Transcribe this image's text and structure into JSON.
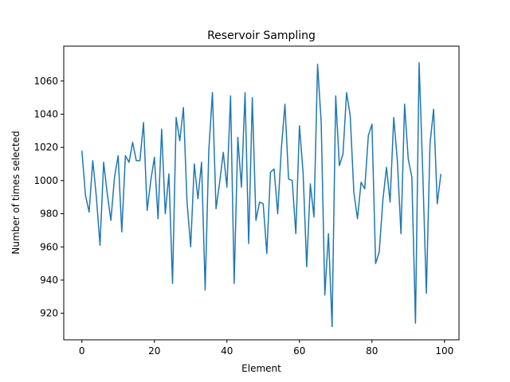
{
  "chart_data": {
    "type": "line",
    "title": "Reservoir Sampling",
    "xlabel": "Element",
    "ylabel": "Number of times selected",
    "xlim": [
      -5,
      104
    ],
    "ylim": [
      904,
      1081
    ],
    "x_ticks": [
      0,
      20,
      40,
      60,
      80,
      100
    ],
    "y_ticks": [
      920,
      940,
      960,
      980,
      1000,
      1020,
      1040,
      1060
    ],
    "grid": false,
    "series": [
      {
        "color": "#1f77b4",
        "x": [
          0,
          1,
          2,
          3,
          4,
          5,
          6,
          7,
          8,
          9,
          10,
          11,
          12,
          13,
          14,
          15,
          16,
          17,
          18,
          19,
          20,
          21,
          22,
          23,
          24,
          25,
          26,
          27,
          28,
          29,
          30,
          31,
          32,
          33,
          34,
          35,
          36,
          37,
          38,
          39,
          40,
          41,
          42,
          43,
          44,
          45,
          46,
          47,
          48,
          49,
          50,
          51,
          52,
          53,
          54,
          55,
          56,
          57,
          58,
          59,
          60,
          61,
          62,
          63,
          64,
          65,
          66,
          67,
          68,
          69,
          70,
          71,
          72,
          73,
          74,
          75,
          76,
          77,
          78,
          79,
          80,
          81,
          82,
          83,
          84,
          85,
          86,
          87,
          88,
          89,
          90,
          91,
          92,
          93,
          94,
          95,
          96,
          97,
          98,
          99
        ],
        "values": [
          1018,
          991,
          981,
          1012,
          990,
          961,
          1011,
          992,
          976,
          1002,
          1015,
          969,
          1015,
          1011,
          1023,
          1012,
          1012,
          1035,
          982,
          1000,
          1014,
          977,
          1031,
          980,
          1004,
          938,
          1038,
          1024,
          1044,
          987,
          960,
          1010,
          989,
          1011,
          934,
          1018,
          1053,
          983,
          999,
          1017,
          996,
          1051,
          938,
          1026,
          996,
          1053,
          962,
          1050,
          976,
          987,
          986,
          956,
          1005,
          1007,
          980,
          1019,
          1046,
          1001,
          1000,
          968,
          1033,
          1005,
          948,
          998,
          978,
          1070,
          1035,
          931,
          968,
          912,
          1051,
          1009,
          1016,
          1053,
          1039,
          993,
          977,
          999,
          995,
          1027,
          1034,
          950,
          957,
          988,
          1008,
          987,
          1038,
          1012,
          968,
          1046,
          1013,
          1002,
          914,
          1071,
          1005,
          932,
          1022,
          1043,
          986,
          1004
        ]
      }
    ]
  }
}
